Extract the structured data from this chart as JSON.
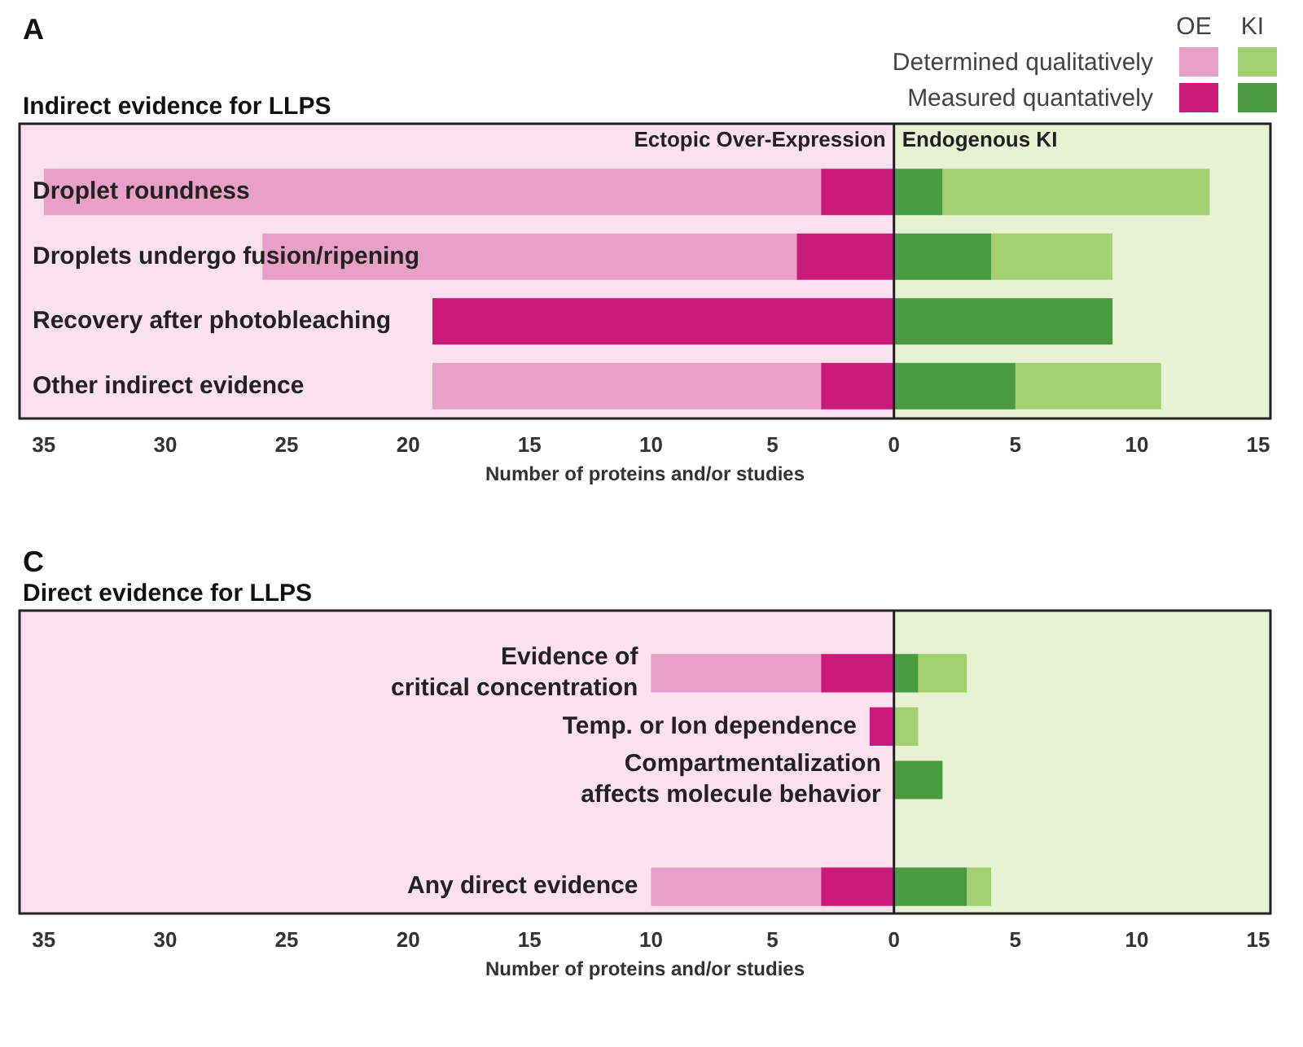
{
  "chart_data": [
    {
      "type": "bar",
      "title": "A",
      "subtitle": "Indirect evidence for LLPS",
      "xlabel": "Number of proteins and/or studies",
      "orientation": "horizontal",
      "stacked": true,
      "legend": "top right",
      "annotations": [
        "OE",
        "KI"
      ],
      "categories": [
        "Droplet roundness",
        "Droplets undergo fusion/ripening",
        "Recovery after photobleaching",
        "Other indirect evidence"
      ],
      "series": [
        {
          "name": "Measured quantatively",
          "color": "#cc1a7a",
          "values": [
            -3,
            -4,
            -19,
            -3
          ]
        },
        {
          "name": "Determined qualitatively",
          "color": "#e8a0c8",
          "values": [
            -32,
            -22,
            0,
            -16
          ]
        },
        {
          "color": "#4a9a40",
          "values": [
            2,
            4,
            9,
            5
          ]
        },
        {
          "color": "#a2d070",
          "values": [
            11,
            5,
            0,
            6
          ]
        }
      ],
      "xlim": [
        -36,
        15.5
      ],
      "xticks": [
        {
          "value": -35,
          "label": "35"
        },
        {
          "value": -30,
          "label": "30"
        },
        {
          "value": -25,
          "label": "25"
        },
        {
          "value": -20,
          "label": "20"
        },
        {
          "value": -15,
          "label": "15"
        },
        {
          "value": -10,
          "label": "10"
        },
        {
          "value": -5,
          "label": "5"
        },
        0,
        5,
        10,
        15
      ],
      "bands": [
        {
          "axis": "x",
          "from": -36,
          "to": 0,
          "label": "Ectopic Over-Expression",
          "color": "#fde0ee"
        },
        {
          "axis": "x",
          "from": 0,
          "to": 15.5,
          "label": "Endogenous KI",
          "color": "#e6f2d2"
        }
      ],
      "ref_lines": [
        {
          "axis": "x",
          "value": 0,
          "color": "#222222"
        }
      ]
    },
    {
      "type": "bar",
      "title": "C",
      "subtitle": "Direct evidence for LLPS",
      "xlabel": "Number of proteins and/or studies",
      "orientation": "horizontal",
      "stacked": true,
      "categories": [
        "Evidence of\ncritical concentration",
        "Temp. or Ion dependence",
        "Compartmentalization\naffects molecule behavior",
        null,
        "Any direct evidence"
      ],
      "series": [
        {
          "color": "#cc1a7a",
          "values": [
            -3,
            -1,
            0,
            null,
            -3
          ]
        },
        {
          "color": "#e8a0c8",
          "values": [
            -7,
            0,
            0,
            null,
            -7
          ]
        },
        {
          "color": "#4a9a40",
          "values": [
            1,
            0,
            2,
            null,
            3
          ]
        },
        {
          "color": "#a2d070",
          "values": [
            2,
            1,
            0,
            null,
            1
          ]
        }
      ],
      "xlim": [
        -36,
        15.5
      ],
      "xticks": [
        {
          "value": -35,
          "label": "35"
        },
        {
          "value": -30,
          "label": "30"
        },
        {
          "value": -25,
          "label": "25"
        },
        {
          "value": -20,
          "label": "20"
        },
        {
          "value": -15,
          "label": "15"
        },
        {
          "value": -10,
          "label": "10"
        },
        {
          "value": -5,
          "label": "5"
        },
        0,
        5,
        10,
        15
      ],
      "bands": [
        {
          "axis": "x",
          "from": -36,
          "to": 0,
          "color": "#fde0ee"
        },
        {
          "axis": "x",
          "from": 0,
          "to": 15.5,
          "color": "#e6f2d2"
        }
      ],
      "ref_lines": [
        {
          "axis": "x",
          "value": 0,
          "color": "#222222"
        }
      ]
    }
  ]
}
